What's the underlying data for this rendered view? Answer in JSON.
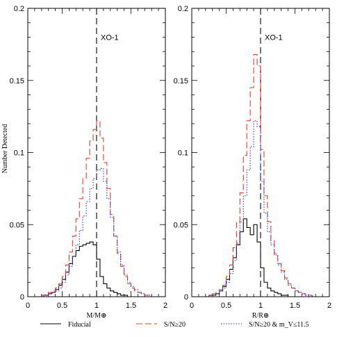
{
  "ylabel": "Number Detected",
  "annotation": "XO-1",
  "colors": {
    "fiducial": "#000000",
    "sn20": "#e8392b",
    "sn20mv": "#3a3ad6",
    "ref": "#000000"
  },
  "legend": [
    {
      "key": "fiducial",
      "label": "Fiducial"
    },
    {
      "key": "sn20",
      "label": "S/N≥20"
    },
    {
      "key": "sn20mv",
      "label": "S/N≥20 & m_V≤11.5"
    }
  ],
  "chart_data": [
    {
      "type": "line",
      "xlabel": "M/M⊕",
      "ylabel": "Number Detected",
      "xlim": [
        0,
        2
      ],
      "ylim": [
        0,
        0.2
      ],
      "xticks": [
        "0",
        "0.5",
        "1",
        "1.5",
        "2"
      ],
      "yticks": [
        "0",
        "0.05",
        "0.1",
        "0.15",
        "0.2"
      ],
      "reference_x": 1.0,
      "annotation": "XO-1",
      "bin_edges": [
        0.2,
        0.25,
        0.3,
        0.35,
        0.4,
        0.45,
        0.5,
        0.55,
        0.6,
        0.65,
        0.7,
        0.75,
        0.8,
        0.85,
        0.9,
        0.95,
        1.0,
        1.05,
        1.1,
        1.15,
        1.2,
        1.25,
        1.3,
        1.35,
        1.4,
        1.45,
        1.5,
        1.55,
        1.6,
        1.65,
        1.7,
        1.75,
        1.8,
        1.85,
        1.9
      ],
      "series": [
        {
          "name": "Fiducial",
          "key": "fiducial",
          "values": [
            0.001,
            0.001,
            0.002,
            0.003,
            0.005,
            0.008,
            0.012,
            0.017,
            0.023,
            0.028,
            0.032,
            0.035,
            0.036,
            0.037,
            0.038,
            0.036,
            0.026,
            0.014,
            0.009,
            0.006,
            0.004,
            0.003,
            0.002,
            0.001,
            0.001,
            0.0,
            0.0,
            0.0,
            0.0,
            0.0,
            0.0,
            0.0,
            0.0,
            0.0
          ]
        },
        {
          "name": "S/N≥20",
          "key": "sn20",
          "values": [
            0.001,
            0.002,
            0.003,
            0.004,
            0.006,
            0.009,
            0.014,
            0.022,
            0.031,
            0.042,
            0.054,
            0.068,
            0.082,
            0.096,
            0.108,
            0.116,
            0.122,
            0.11,
            0.093,
            0.075,
            0.057,
            0.042,
            0.03,
            0.021,
            0.014,
            0.009,
            0.006,
            0.004,
            0.003,
            0.002,
            0.001,
            0.001,
            0.0,
            0.0
          ]
        },
        {
          "name": "S/N≥20 & m_V≤11.5",
          "key": "sn20mv",
          "values": [
            0.0005,
            0.001,
            0.002,
            0.003,
            0.004,
            0.006,
            0.01,
            0.015,
            0.021,
            0.028,
            0.036,
            0.046,
            0.056,
            0.066,
            0.075,
            0.082,
            0.088,
            0.089,
            0.08,
            0.068,
            0.055,
            0.042,
            0.031,
            0.022,
            0.015,
            0.01,
            0.007,
            0.005,
            0.003,
            0.002,
            0.001,
            0.001,
            0.0,
            0.0
          ]
        }
      ]
    },
    {
      "type": "line",
      "xlabel": "R/R⊕",
      "ylabel": "",
      "xlim": [
        0,
        2
      ],
      "ylim": [
        0,
        0.2
      ],
      "xticks": [
        "0",
        "0.5",
        "1",
        "1.5",
        "2"
      ],
      "yticks": [
        "0",
        "0.05",
        "0.1",
        "0.15",
        "0.2"
      ],
      "reference_x": 1.0,
      "annotation": "XO-1",
      "bin_edges": [
        0.2,
        0.25,
        0.3,
        0.35,
        0.4,
        0.45,
        0.5,
        0.55,
        0.6,
        0.65,
        0.7,
        0.75,
        0.8,
        0.85,
        0.9,
        0.95,
        1.0,
        1.05,
        1.1,
        1.15,
        1.2,
        1.25,
        1.3,
        1.35,
        1.4,
        1.45,
        1.5,
        1.55,
        1.6,
        1.65,
        1.7,
        1.75,
        1.8,
        1.85,
        1.9
      ],
      "series": [
        {
          "name": "Fiducial",
          "key": "fiducial",
          "values": [
            0.0,
            0.001,
            0.001,
            0.002,
            0.004,
            0.007,
            0.012,
            0.019,
            0.027,
            0.036,
            0.045,
            0.054,
            0.048,
            0.043,
            0.05,
            0.038,
            0.02,
            0.01,
            0.006,
            0.004,
            0.003,
            0.002,
            0.001,
            0.001,
            0.0,
            0.0,
            0.0,
            0.0,
            0.0,
            0.0,
            0.0,
            0.0,
            0.0,
            0.0
          ]
        },
        {
          "name": "S/N≥20",
          "key": "sn20",
          "values": [
            0.0,
            0.001,
            0.002,
            0.003,
            0.005,
            0.008,
            0.014,
            0.022,
            0.034,
            0.052,
            0.072,
            0.098,
            0.122,
            0.145,
            0.168,
            0.16,
            0.102,
            0.07,
            0.052,
            0.039,
            0.03,
            0.023,
            0.018,
            0.013,
            0.009,
            0.006,
            0.004,
            0.003,
            0.002,
            0.001,
            0.001,
            0.0,
            0.0,
            0.0
          ]
        },
        {
          "name": "S/N≥20 & m_V≤11.5",
          "key": "sn20mv",
          "values": [
            0.0,
            0.001,
            0.001,
            0.002,
            0.004,
            0.006,
            0.01,
            0.016,
            0.025,
            0.037,
            0.052,
            0.07,
            0.088,
            0.104,
            0.122,
            0.118,
            0.08,
            0.058,
            0.045,
            0.036,
            0.029,
            0.022,
            0.017,
            0.012,
            0.008,
            0.006,
            0.004,
            0.003,
            0.002,
            0.001,
            0.001,
            0.0,
            0.0,
            0.0
          ]
        }
      ]
    }
  ]
}
